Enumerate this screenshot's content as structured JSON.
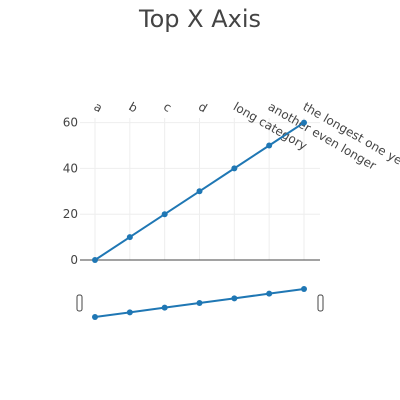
{
  "chart_data": {
    "type": "line",
    "title": "Top X Axis",
    "xlabel": "",
    "ylabel": "",
    "x_axis_side": "top",
    "x_tick_angle_deg": -30,
    "categories": [
      "a",
      "b",
      "c",
      "d",
      "long category",
      "another even longer",
      "the longest one yet!!!!!!"
    ],
    "series": [
      {
        "values": [
          0,
          10,
          20,
          30,
          40,
          50,
          60
        ]
      }
    ],
    "ylim": [
      0,
      62
    ],
    "yticks": [
      0,
      20,
      40,
      60
    ],
    "grid": true,
    "legend": "none",
    "rangeslider": true,
    "color": "#1f77b4"
  }
}
